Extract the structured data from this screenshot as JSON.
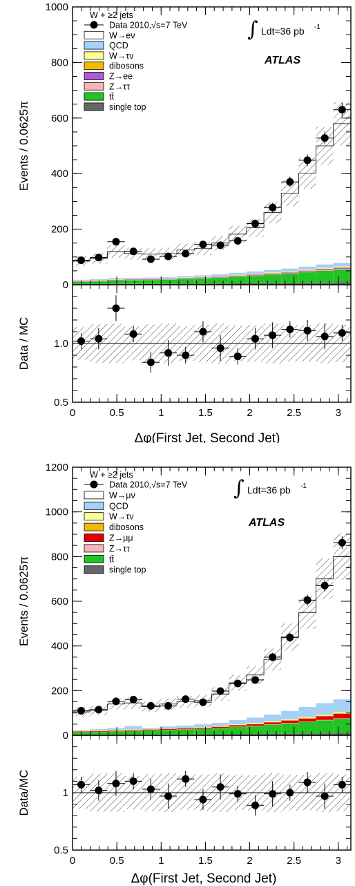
{
  "chart_data": [
    {
      "type": "bar",
      "panel": "electron",
      "legend_title": "W + ≥2 jets",
      "legend": [
        {
          "label": "Data 2010,√s=7 TeV",
          "color": "#000000",
          "kind": "data"
        },
        {
          "label": "W→eν",
          "color": "#ffffff",
          "kind": "box"
        },
        {
          "label": "QCD",
          "color": "#a6d0f5",
          "kind": "box"
        },
        {
          "label": "W→τν",
          "color": "#ffff99",
          "kind": "box"
        },
        {
          "label": "dibosons",
          "color": "#f5b800",
          "kind": "box"
        },
        {
          "label": "Z→ee",
          "color": "#b05cd6",
          "kind": "box"
        },
        {
          "label": "Z→ττ",
          "color": "#f5b5b5",
          "kind": "box"
        },
        {
          "label": "tt̄",
          "color": "#22c322",
          "kind": "box"
        },
        {
          "label": "single top",
          "color": "#666666",
          "kind": "box"
        }
      ],
      "lumi_text": "Ldt=36 pb",
      "lumi_sup": "-1",
      "atlas_label": "ATLAS",
      "ylabel": "Events / 0.0625π",
      "ratio_ylabel": "Data / MC",
      "xlabel": "Δφ(First Jet, Second Jet)",
      "xlim": [
        0,
        3.1416
      ],
      "ylim": [
        0,
        1000
      ],
      "yticks": [
        0,
        200,
        400,
        600,
        800,
        1000
      ],
      "ratio_ylim": [
        0.5,
        1.5
      ],
      "ratio_yticks": [
        0.5,
        1.0
      ],
      "ratio_ytick_labels": [
        "0.5",
        "1.0"
      ],
      "xticks": [
        0,
        0.5,
        1,
        1.5,
        2,
        2.5,
        3
      ],
      "xtick_labels": [
        "0",
        "0.5",
        "1",
        "1.5",
        "2",
        "2.5",
        "3"
      ],
      "x_centers": [
        0.098,
        0.295,
        0.491,
        0.687,
        0.884,
        1.08,
        1.276,
        1.473,
        1.669,
        1.865,
        2.062,
        2.258,
        2.454,
        2.651,
        2.847,
        3.043
      ],
      "data": [
        88,
        98,
        155,
        120,
        92,
        102,
        112,
        145,
        142,
        158,
        220,
        278,
        370,
        448,
        528,
        630
      ],
      "mc_total": [
        85,
        95,
        120,
        112,
        110,
        112,
        125,
        130,
        150,
        182,
        205,
        260,
        330,
        402,
        500,
        580
      ],
      "stack_series": [
        {
          "name": "single top",
          "color": "#666666",
          "values": [
            2,
            2,
            3,
            3,
            3,
            3,
            4,
            4,
            4,
            5,
            5,
            6,
            6,
            7,
            8,
            9
          ]
        },
        {
          "name": "tt̄",
          "color": "#22c322",
          "values": [
            8,
            10,
            12,
            13,
            14,
            15,
            17,
            19,
            21,
            24,
            27,
            30,
            34,
            38,
            42,
            46
          ]
        },
        {
          "name": "Z→ττ",
          "color": "#f5b5b5",
          "values": [
            1,
            1,
            1,
            1,
            1,
            1,
            1,
            1,
            1,
            1,
            1,
            1,
            1,
            2,
            2,
            2
          ]
        },
        {
          "name": "Z→ee",
          "color": "#b05cd6",
          "values": [
            2,
            2,
            2,
            2,
            2,
            2,
            2,
            2,
            3,
            3,
            3,
            3,
            3,
            3,
            4,
            4
          ]
        },
        {
          "name": "dibosons",
          "color": "#f5b800",
          "values": [
            1,
            1,
            1,
            1,
            1,
            1,
            1,
            1,
            1,
            1,
            2,
            2,
            2,
            2,
            2,
            2
          ]
        },
        {
          "name": "W→τν",
          "color": "#ffff99",
          "values": [
            1,
            1,
            1,
            1,
            1,
            1,
            1,
            2,
            2,
            2,
            2,
            2,
            2,
            2,
            3,
            3
          ]
        },
        {
          "name": "QCD",
          "color": "#a6d0f5",
          "values": [
            3,
            3,
            4,
            4,
            4,
            4,
            5,
            5,
            6,
            7,
            8,
            9,
            10,
            11,
            12,
            13
          ]
        }
      ],
      "ratio": [
        1.02,
        1.04,
        1.3,
        1.08,
        0.84,
        0.92,
        0.9,
        1.1,
        0.96,
        0.89,
        1.04,
        1.07,
        1.12,
        1.11,
        1.06,
        1.09
      ]
    },
    {
      "type": "bar",
      "panel": "muon",
      "legend_title": "W + ≥2 jets",
      "legend": [
        {
          "label": "Data 2010,√s=7 TeV",
          "color": "#000000",
          "kind": "data"
        },
        {
          "label": "W→μν",
          "color": "#ffffff",
          "kind": "box"
        },
        {
          "label": "QCD",
          "color": "#a6d0f5",
          "kind": "box"
        },
        {
          "label": "W→τν",
          "color": "#ffff99",
          "kind": "box"
        },
        {
          "label": "dibosons",
          "color": "#f5b800",
          "kind": "box"
        },
        {
          "label": "Z→μμ",
          "color": "#e00000",
          "kind": "box"
        },
        {
          "label": "Z→ττ",
          "color": "#f5b5b5",
          "kind": "box"
        },
        {
          "label": "tt̄",
          "color": "#22c322",
          "kind": "box"
        },
        {
          "label": "single top",
          "color": "#666666",
          "kind": "box"
        }
      ],
      "lumi_text": "Ldt=36 pb",
      "lumi_sup": "-1",
      "atlas_label": "ATLAS",
      "ylabel": "Events / 0.0625π",
      "ratio_ylabel": "Data/MC",
      "xlabel": "Δφ(First Jet, Second Jet)",
      "xlim": [
        0,
        3.1416
      ],
      "ylim": [
        0,
        1200
      ],
      "yticks": [
        0,
        200,
        400,
        600,
        800,
        1000,
        1200
      ],
      "ratio_ylim": [
        0.5,
        1.5
      ],
      "ratio_yticks": [
        0.5,
        1.0
      ],
      "ratio_ytick_labels": [
        "0.5",
        "1"
      ],
      "xticks": [
        0,
        0.5,
        1,
        1.5,
        2,
        2.5,
        3
      ],
      "xtick_labels": [
        "0",
        "0.5",
        "1",
        "1.5",
        "2",
        "2.5",
        "3"
      ],
      "x_centers": [
        0.098,
        0.295,
        0.491,
        0.687,
        0.884,
        1.08,
        1.276,
        1.473,
        1.669,
        1.865,
        2.062,
        2.258,
        2.454,
        2.651,
        2.847,
        3.043
      ],
      "data": [
        110,
        115,
        152,
        160,
        132,
        132,
        162,
        148,
        198,
        232,
        248,
        350,
        438,
        605,
        670,
        862
      ],
      "mc_total": [
        105,
        112,
        140,
        145,
        128,
        140,
        150,
        155,
        185,
        235,
        270,
        340,
        440,
        550,
        700,
        800
      ],
      "stack_series": [
        {
          "name": "single top",
          "color": "#666666",
          "values": [
            3,
            3,
            3,
            3,
            4,
            4,
            4,
            5,
            5,
            6,
            6,
            7,
            7,
            8,
            9,
            10
          ]
        },
        {
          "name": "tt̄",
          "color": "#22c322",
          "values": [
            10,
            12,
            14,
            16,
            18,
            20,
            22,
            24,
            27,
            31,
            35,
            40,
            46,
            52,
            58,
            64
          ]
        },
        {
          "name": "Z→ττ",
          "color": "#f5b5b5",
          "values": [
            1,
            1,
            1,
            1,
            1,
            1,
            1,
            1,
            1,
            2,
            2,
            2,
            2,
            2,
            2,
            2
          ]
        },
        {
          "name": "Z→μμ",
          "color": "#e00000",
          "values": [
            3,
            3,
            3,
            3,
            3,
            4,
            4,
            4,
            5,
            6,
            7,
            9,
            11,
            13,
            16,
            20
          ]
        },
        {
          "name": "dibosons",
          "color": "#f5b800",
          "values": [
            1,
            1,
            1,
            1,
            1,
            1,
            1,
            1,
            2,
            2,
            2,
            2,
            2,
            3,
            3,
            3
          ]
        },
        {
          "name": "W→τν",
          "color": "#ffff99",
          "values": [
            2,
            2,
            2,
            2,
            2,
            2,
            2,
            2,
            2,
            3,
            3,
            3,
            3,
            3,
            4,
            4
          ]
        },
        {
          "name": "QCD",
          "color": "#a6d0f5",
          "values": [
            4,
            6,
            8,
            16,
            5,
            8,
            10,
            12,
            14,
            18,
            24,
            30,
            38,
            46,
            52,
            58
          ]
        }
      ],
      "ratio": [
        1.07,
        1.02,
        1.08,
        1.1,
        1.03,
        0.97,
        1.12,
        0.94,
        1.05,
        0.99,
        0.89,
        0.99,
        1.0,
        1.09,
        0.97,
        1.07
      ]
    }
  ]
}
